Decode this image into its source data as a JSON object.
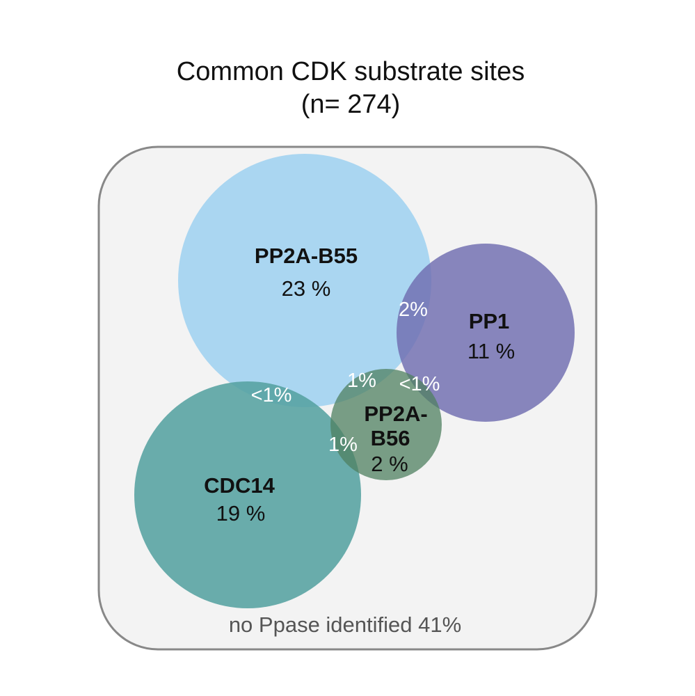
{
  "title": {
    "line1": "Common CDK substrate sites",
    "line2": "(n= 274)"
  },
  "sets": {
    "pp2a_b55": {
      "name": "PP2A-B55",
      "percent": "23 %",
      "color": "#9fd1f0"
    },
    "pp1": {
      "name": "PP1",
      "percent": "11 %",
      "color": "#6f6db0"
    },
    "cdc14": {
      "name": "CDC14",
      "percent": "19 %",
      "color": "#55a2a0"
    },
    "pp2a_b56": {
      "name_line1": "PP2A-",
      "name_line2": "B56",
      "percent": "2 %",
      "color": "#4f8060"
    }
  },
  "overlaps": {
    "b55_pp1": "2%",
    "b55_b56": "1%",
    "b56_pp1": "<1%",
    "b55_cdc14": "<1%",
    "cdc14_b56": "1%"
  },
  "outside": {
    "label": "no Ppase identified 41%"
  },
  "colors": {
    "universe_fill": "#f3f3f3",
    "universe_stroke": "#888888"
  }
}
